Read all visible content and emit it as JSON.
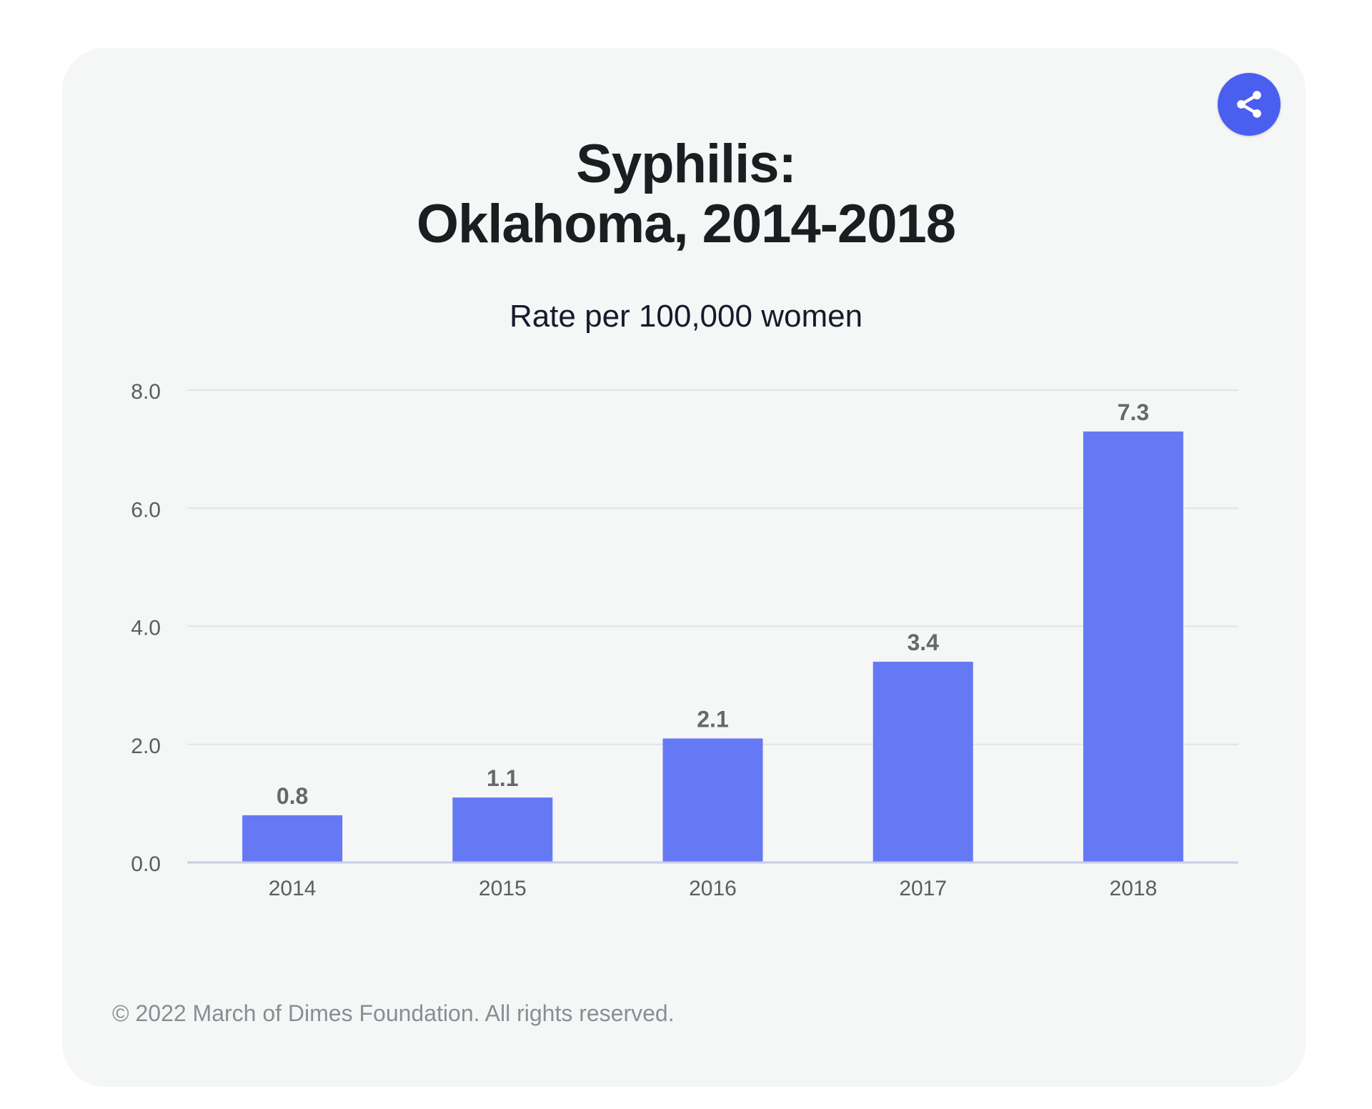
{
  "share_button": {
    "icon": "share-icon",
    "color": "#4a5ef0"
  },
  "title": {
    "line1": "Syphilis:",
    "line2": "Oklahoma, 2014-2018"
  },
  "subtitle": "Rate per 100,000 women",
  "footer": "© 2022 March of Dimes Foundation. All rights reserved.",
  "chart_data": {
    "type": "bar",
    "title": "Syphilis: Oklahoma, 2014-2018",
    "subtitle": "Rate per 100,000 women",
    "xlabel": "",
    "ylabel": "Rate per 100,000 women",
    "categories": [
      "2014",
      "2015",
      "2016",
      "2017",
      "2018"
    ],
    "values": [
      0.8,
      1.1,
      2.1,
      3.4,
      7.3
    ],
    "data_labels": [
      "0.8",
      "1.1",
      "2.1",
      "3.4",
      "7.3"
    ],
    "ylim": [
      0,
      8
    ],
    "yticks": [
      0,
      2,
      4,
      6,
      8
    ],
    "ytick_labels": [
      "0.0",
      "2.0",
      "4.0",
      "6.0",
      "8.0"
    ],
    "grid": true,
    "legend": "none",
    "bar_color": "#6579f5"
  }
}
